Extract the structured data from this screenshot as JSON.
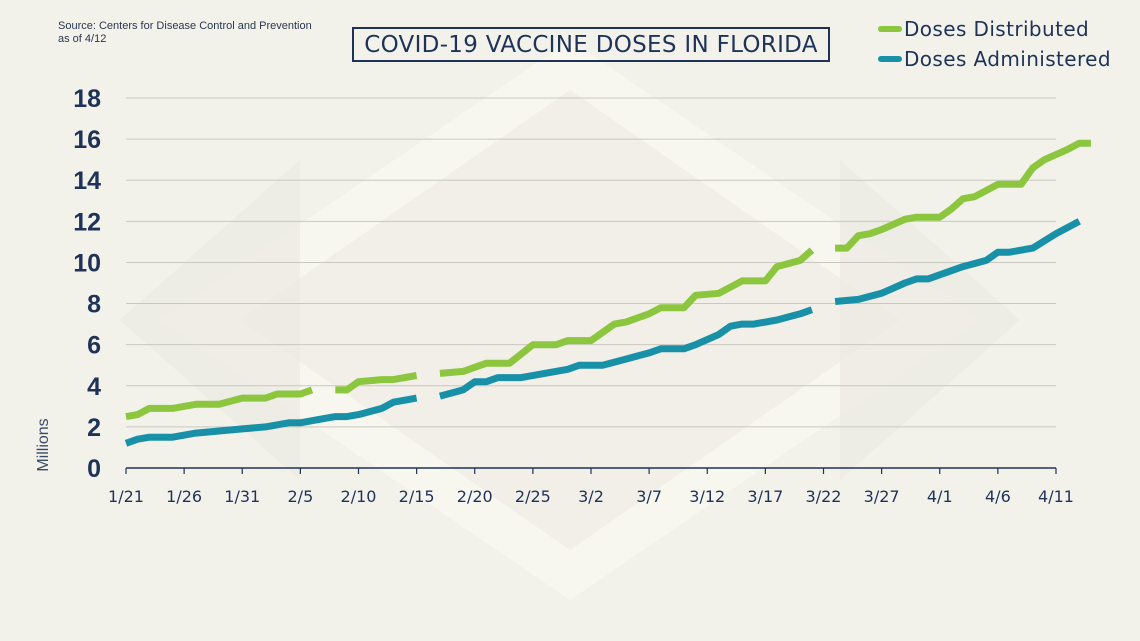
{
  "source": {
    "line1": "Source: Centers for Disease Control and Prevention",
    "line2": "as of 4/12"
  },
  "chart_data": {
    "type": "line",
    "title": "COVID-19 VACCINE DOSES IN FLORIDA",
    "ylabel": "Millions",
    "xlabel": "",
    "ylim": [
      0,
      18
    ],
    "yticks": [
      0,
      2,
      4,
      6,
      8,
      10,
      12,
      14,
      16,
      18
    ],
    "x_ticks": [
      "1/21",
      "1/26",
      "1/31",
      "2/5",
      "2/10",
      "2/15",
      "2/20",
      "2/25",
      "3/2",
      "3/7",
      "3/12",
      "3/17",
      "3/22",
      "3/27",
      "4/1",
      "4/6",
      "4/11"
    ],
    "legend_position": "top-right",
    "grid": true,
    "colors": {
      "distributed": "#8cc63f",
      "administered": "#1891a8",
      "text": "#1f3358"
    },
    "series": [
      {
        "name": "Doses Distributed",
        "color": "#8cc63f",
        "segments": [
          [
            [
              "1/21",
              2.5
            ],
            [
              "1/22",
              2.6
            ],
            [
              "1/23",
              2.9
            ],
            [
              "1/25",
              2.9
            ],
            [
              "1/27",
              3.1
            ],
            [
              "1/29",
              3.1
            ],
            [
              "1/31",
              3.4
            ],
            [
              "2/2",
              3.4
            ],
            [
              "2/3",
              3.6
            ],
            [
              "2/5",
              3.6
            ],
            [
              "2/6",
              3.8
            ]
          ],
          [
            [
              "2/8",
              3.8
            ],
            [
              "2/9",
              3.8
            ],
            [
              "2/10",
              4.2
            ],
            [
              "2/12",
              4.3
            ],
            [
              "2/13",
              4.3
            ],
            [
              "2/15",
              4.5
            ]
          ],
          [
            [
              "2/17",
              4.6
            ],
            [
              "2/19",
              4.7
            ],
            [
              "2/21",
              5.1
            ],
            [
              "2/23",
              5.1
            ],
            [
              "2/25",
              6.0
            ],
            [
              "2/27",
              6.0
            ],
            [
              "2/28",
              6.2
            ],
            [
              "3/2",
              6.2
            ],
            [
              "3/4",
              7.0
            ],
            [
              "3/5",
              7.1
            ],
            [
              "3/7",
              7.5
            ],
            [
              "3/8",
              7.8
            ],
            [
              "3/10",
              7.8
            ],
            [
              "3/11",
              8.4
            ],
            [
              "3/13",
              8.5
            ],
            [
              "3/15",
              9.1
            ],
            [
              "3/17",
              9.1
            ],
            [
              "3/18",
              9.8
            ],
            [
              "3/20",
              10.1
            ],
            [
              "3/21",
              10.6
            ]
          ]
        ]
      },
      {
        "name": "Doses Administered",
        "color": "#1891a8",
        "segments": [
          [
            [
              "1/21",
              1.2
            ],
            [
              "1/22",
              1.4
            ],
            [
              "1/23",
              1.5
            ],
            [
              "1/25",
              1.5
            ],
            [
              "1/27",
              1.7
            ],
            [
              "1/29",
              1.8
            ],
            [
              "1/31",
              1.9
            ],
            [
              "2/2",
              2.0
            ],
            [
              "2/4",
              2.2
            ],
            [
              "2/5",
              2.2
            ],
            [
              "2/6",
              2.3
            ],
            [
              "2/8",
              2.5
            ],
            [
              "2/9",
              2.5
            ],
            [
              "2/10",
              2.6
            ],
            [
              "2/12",
              2.9
            ],
            [
              "2/13",
              3.2
            ],
            [
              "2/15",
              3.4
            ]
          ],
          [
            [
              "2/17",
              3.5
            ],
            [
              "2/19",
              3.8
            ],
            [
              "2/20",
              4.2
            ],
            [
              "2/21",
              4.2
            ],
            [
              "2/22",
              4.4
            ],
            [
              "2/24",
              4.4
            ],
            [
              "2/26",
              4.6
            ],
            [
              "2/28",
              4.8
            ],
            [
              "3/1",
              5.0
            ],
            [
              "3/3",
              5.0
            ],
            [
              "3/5",
              5.3
            ],
            [
              "3/7",
              5.6
            ],
            [
              "3/8",
              5.8
            ],
            [
              "3/10",
              5.8
            ],
            [
              "3/11",
              6.0
            ],
            [
              "3/13",
              6.5
            ],
            [
              "3/14",
              6.9
            ],
            [
              "3/15",
              7.0
            ],
            [
              "3/16",
              7.0
            ],
            [
              "3/18",
              7.2
            ],
            [
              "3/20",
              7.5
            ],
            [
              "3/21",
              7.7
            ]
          ],
          [
            [
              "3/23",
              8.1
            ],
            [
              "3/25",
              8.2
            ],
            [
              "3/27",
              8.5
            ],
            [
              "3/29",
              9.0
            ],
            [
              "3/30",
              9.2
            ],
            [
              "3/31",
              9.2
            ],
            [
              "4/2",
              9.6
            ],
            [
              "4/3",
              9.8
            ],
            [
              "4/5",
              10.1
            ],
            [
              "4/6",
              10.5
            ],
            [
              "4/7",
              10.5
            ],
            [
              "4/9",
              10.7
            ],
            [
              "4/11",
              11.4
            ],
            [
              "4/13",
              12.0
            ]
          ]
        ]
      },
      {
        "name": "Doses Distributed",
        "color": "#8cc63f",
        "continuation": true,
        "segments": [
          [
            [
              "3/23",
              10.7
            ],
            [
              "3/24",
              10.7
            ],
            [
              "3/25",
              11.3
            ],
            [
              "3/26",
              11.4
            ],
            [
              "3/27",
              11.6
            ],
            [
              "3/29",
              12.1
            ],
            [
              "3/30",
              12.2
            ],
            [
              "3/31",
              12.2
            ],
            [
              "4/1",
              12.2
            ],
            [
              "4/2",
              12.6
            ],
            [
              "4/3",
              13.1
            ],
            [
              "4/4",
              13.2
            ],
            [
              "4/6",
              13.8
            ],
            [
              "4/7",
              13.8
            ],
            [
              "4/8",
              13.8
            ],
            [
              "4/9",
              14.6
            ],
            [
              "4/10",
              15.0
            ],
            [
              "4/12",
              15.5
            ],
            [
              "4/13",
              15.8
            ],
            [
              "4/14",
              15.8
            ]
          ]
        ]
      }
    ]
  }
}
